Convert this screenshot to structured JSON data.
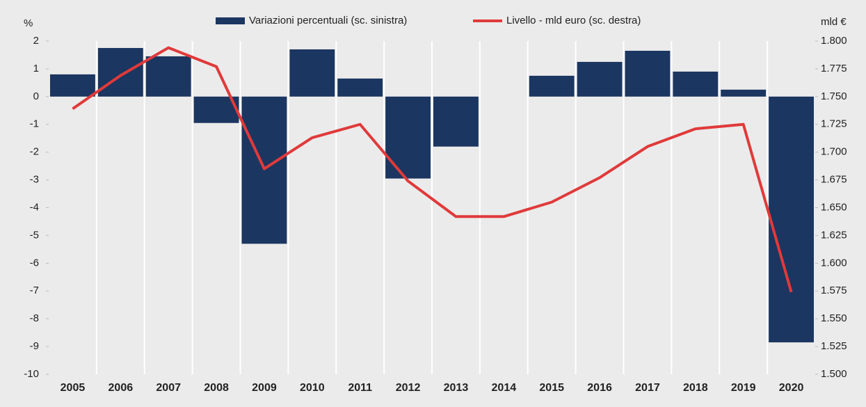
{
  "chart_data": {
    "type": "bar_line",
    "ylabel": "%",
    "y2label": "mld €",
    "categories": [
      "2005",
      "2006",
      "2007",
      "2008",
      "2009",
      "2010",
      "2011",
      "2012",
      "2013",
      "2014",
      "2015",
      "2016",
      "2017",
      "2018",
      "2019",
      "2020"
    ],
    "series": [
      {
        "name": "Variazioni percentuali (sc. sinistra)",
        "type": "bar",
        "color": "#1b3660",
        "values": [
          0.8,
          1.75,
          1.45,
          -0.95,
          -5.3,
          1.7,
          0.65,
          -2.95,
          -1.8,
          0,
          0.75,
          1.25,
          1.65,
          0.9,
          0.25,
          -8.85
        ]
      },
      {
        "name": "Livello - mld euro (sc. destra)",
        "type": "line",
        "color": "#e03a3a",
        "axis": "y2",
        "values": [
          1.739,
          1.769,
          1.794,
          1.777,
          1.685,
          1.713,
          1.725,
          1.674,
          1.642,
          1.642,
          1.655,
          1.677,
          1.705,
          1.721,
          1.725,
          1.574
        ]
      }
    ],
    "ylim": [
      -10,
      2
    ],
    "yticks": [
      2,
      1,
      0,
      -1,
      -2,
      -3,
      -4,
      -5,
      -6,
      -7,
      -8,
      -9,
      -10
    ],
    "y2lim": [
      1.5,
      1.8
    ],
    "y2ticks": [
      {
        "value": 1.8,
        "label": "1.800"
      },
      {
        "value": 1.775,
        "label": "1.775"
      },
      {
        "value": 1.75,
        "label": "1.750"
      },
      {
        "value": 1.725,
        "label": "1.725"
      },
      {
        "value": 1.7,
        "label": "1.700"
      },
      {
        "value": 1.675,
        "label": "1.675"
      },
      {
        "value": 1.65,
        "label": "1.650"
      },
      {
        "value": 1.625,
        "label": "1.625"
      },
      {
        "value": 1.6,
        "label": "1.600"
      },
      {
        "value": 1.575,
        "label": "1.575"
      },
      {
        "value": 1.55,
        "label": "1.550"
      },
      {
        "value": 1.525,
        "label": "1.525"
      },
      {
        "value": 1.5,
        "label": "1.500"
      }
    ],
    "grid": true,
    "legend": "top"
  }
}
